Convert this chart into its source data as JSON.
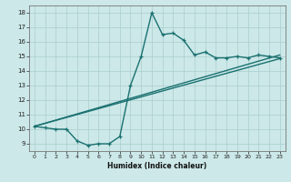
{
  "xlabel": "Humidex (Indice chaleur)",
  "bg_color": "#cce8e8",
  "line_color": "#1a7070",
  "line1_x": [
    0,
    1,
    2,
    3,
    4,
    5,
    6,
    7,
    8,
    9,
    10,
    11,
    12,
    13,
    14,
    15,
    16,
    17,
    18,
    19,
    20,
    21,
    22,
    23
  ],
  "line1_y": [
    10.2,
    10.1,
    10.0,
    10.0,
    9.2,
    8.9,
    9.0,
    9.0,
    9.5,
    13.0,
    15.0,
    18.0,
    16.5,
    16.6,
    16.1,
    15.1,
    15.3,
    14.9,
    14.9,
    15.0,
    14.9,
    15.1,
    15.0,
    14.9
  ],
  "line2_x": [
    0,
    23
  ],
  "line2_y": [
    10.2,
    15.1
  ],
  "line3_x": [
    0,
    23
  ],
  "line3_y": [
    10.2,
    14.85
  ],
  "xlim": [
    -0.5,
    23.5
  ],
  "ylim": [
    8.5,
    18.5
  ],
  "xticks": [
    0,
    1,
    2,
    3,
    4,
    5,
    6,
    7,
    8,
    9,
    10,
    11,
    12,
    13,
    14,
    15,
    16,
    17,
    18,
    19,
    20,
    21,
    22,
    23
  ],
  "yticks": [
    9,
    10,
    11,
    12,
    13,
    14,
    15,
    16,
    17,
    18
  ],
  "grid_color": "#aacece"
}
